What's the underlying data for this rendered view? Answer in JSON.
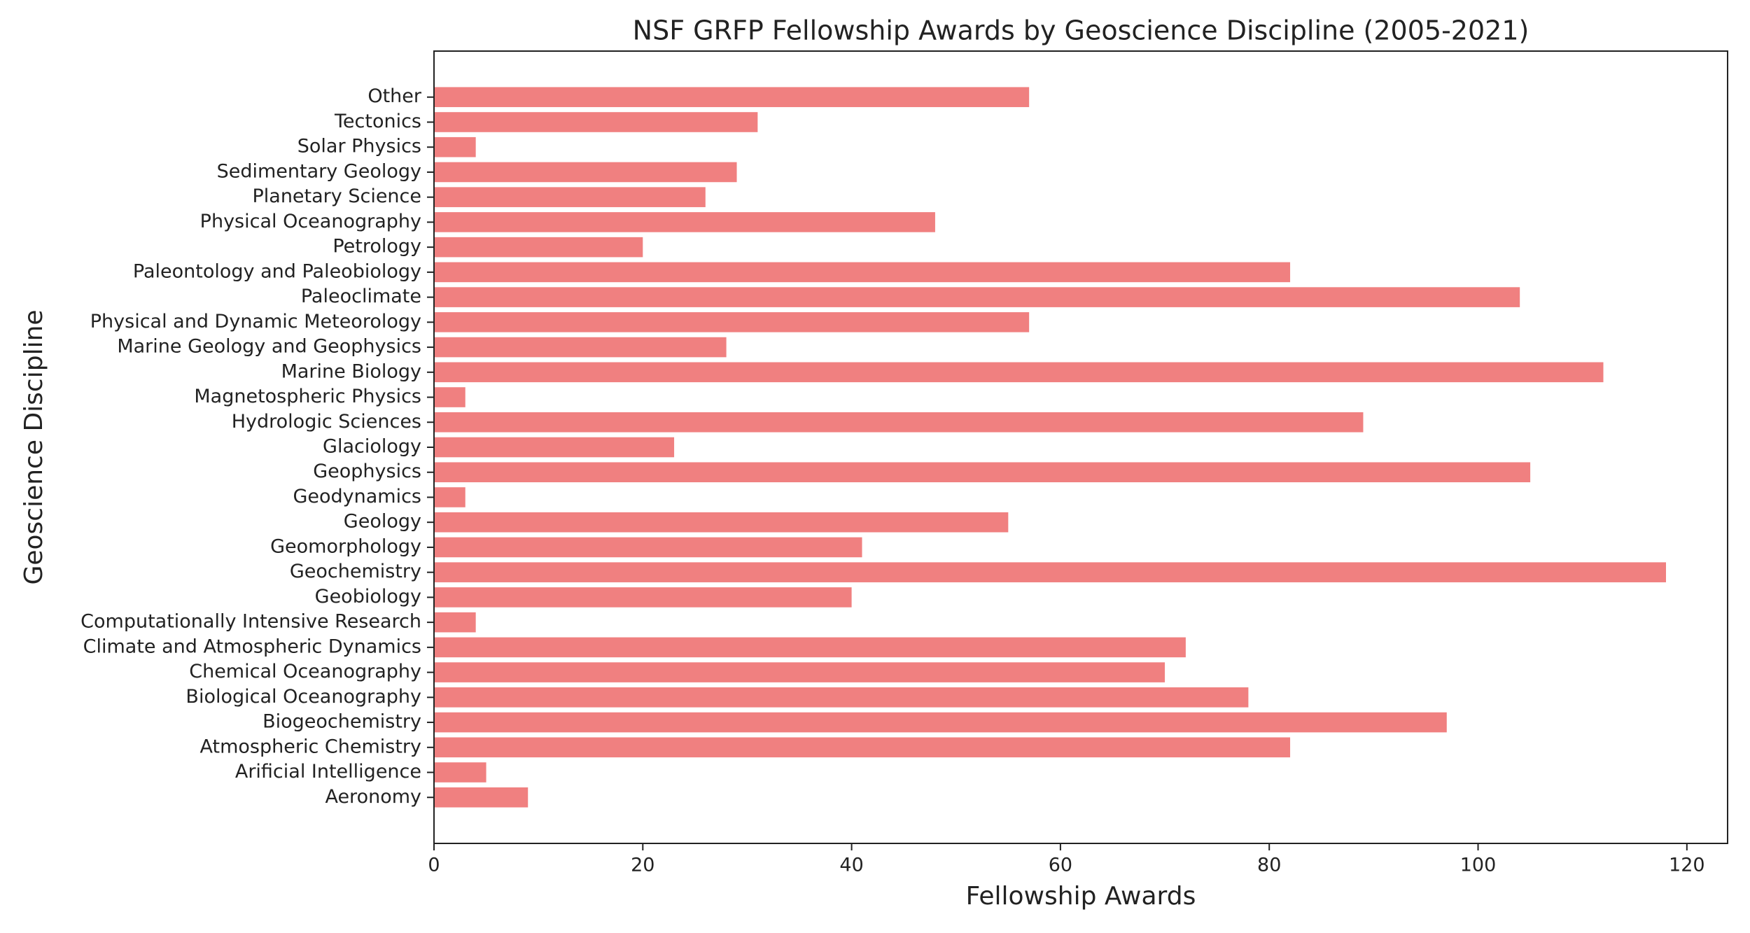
{
  "chart_data": {
    "type": "barh",
    "title": "NSF GRFP Fellowship Awards by Geoscience Discipline (2005-2021)",
    "x_label": "Fellowship Awards",
    "y_label": "Geoscience Discipline",
    "categories": [
      "Aeronomy",
      "Arificial Intelligence",
      "Atmospheric Chemistry",
      "Biogeochemistry",
      "Biological Oceanography",
      "Chemical Oceanography",
      "Climate and Atmospheric Dynamics",
      "Computationally Intensive Research",
      "Geobiology",
      "Geochemistry",
      "Geomorphology",
      "Geology",
      "Geodynamics",
      "Geophysics",
      "Glaciology",
      "Hydrologic Sciences",
      "Magnetospheric Physics",
      "Marine Biology",
      "Marine Geology and Geophysics",
      "Physical and Dynamic Meteorology",
      "Paleoclimate",
      "Paleontology and Paleobiology",
      "Petrology",
      "Physical Oceanography",
      "Planetary Science",
      "Sedimentary Geology",
      "Solar Physics",
      "Tectonics",
      "Other"
    ],
    "values": [
      9,
      5,
      82,
      97,
      78,
      70,
      72,
      4,
      40,
      118,
      41,
      55,
      3,
      105,
      23,
      89,
      3,
      112,
      28,
      57,
      104,
      82,
      20,
      48,
      26,
      29,
      4,
      31,
      57
    ],
    "color": "#f08080",
    "xlim": [
      0,
      123.9
    ],
    "xticks": [
      0,
      20,
      40,
      60,
      80,
      100,
      120
    ],
    "grid": false
  }
}
